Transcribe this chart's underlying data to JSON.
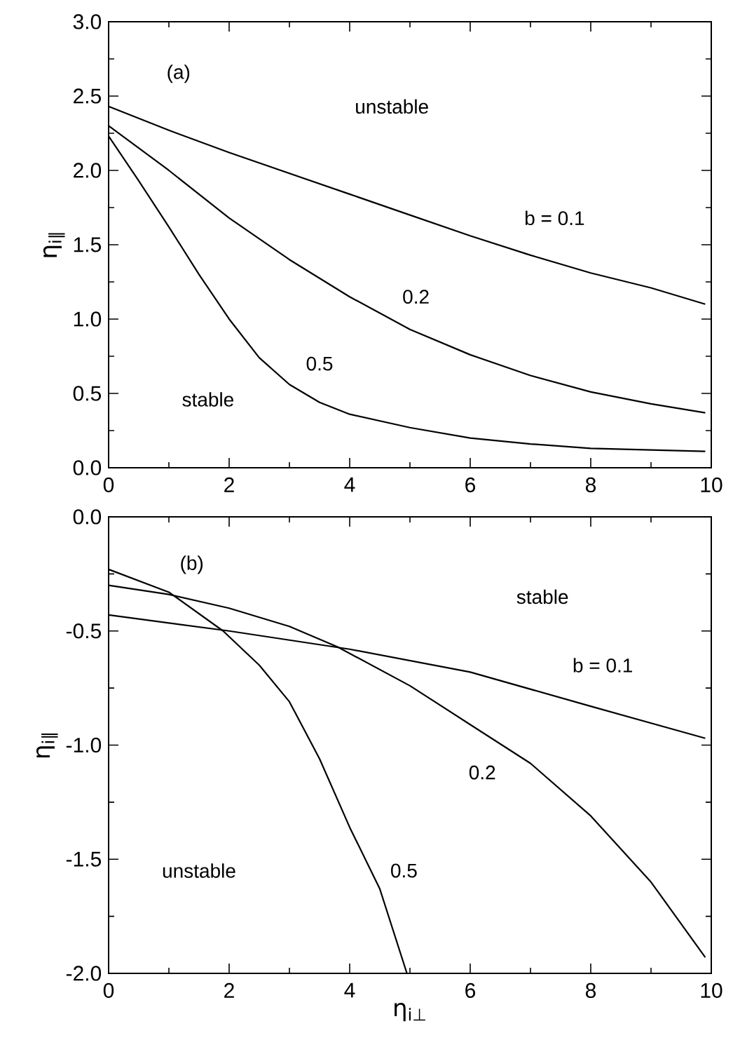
{
  "chart_data": [
    {
      "type": "line",
      "ylabel": "η$_{i∥}$",
      "xlim": [
        0,
        10
      ],
      "ylim": [
        0,
        3
      ],
      "xticks": [
        0,
        2,
        4,
        6,
        8,
        10
      ],
      "yticks": [
        {
          "value": 0,
          "label": "0.0"
        },
        {
          "value": 0.5,
          "label": "0.5"
        },
        {
          "value": 1,
          "label": "1.0"
        },
        {
          "value": 1.5,
          "label": "1.5"
        },
        {
          "value": 2,
          "label": "2.0"
        },
        {
          "value": 2.5,
          "label": "2.5"
        },
        {
          "value": 3,
          "label": "3.0"
        }
      ],
      "annotations": [
        "(a)",
        "unstable",
        "stable"
      ],
      "series": [
        {
          "name": "b = 0.1",
          "color": "#000000",
          "x": [
            0,
            1,
            2,
            3,
            4,
            5,
            6,
            7,
            8,
            9,
            9.9
          ],
          "values": [
            2.43,
            2.27,
            2.12,
            1.98,
            1.84,
            1.7,
            1.56,
            1.43,
            1.31,
            1.21,
            1.1
          ]
        },
        {
          "name": "0.2",
          "color": "#000000",
          "x": [
            0,
            1,
            2,
            3,
            4,
            5,
            6,
            7,
            8,
            9,
            9.9
          ],
          "values": [
            2.3,
            2.0,
            1.68,
            1.4,
            1.15,
            0.93,
            0.76,
            0.62,
            0.51,
            0.43,
            0.37
          ]
        },
        {
          "name": "0.5",
          "color": "#000000",
          "x": [
            0,
            0.5,
            1,
            1.5,
            2,
            2.5,
            3,
            3.5,
            4,
            5,
            6,
            7,
            8,
            9,
            9.9
          ],
          "values": [
            2.23,
            1.93,
            1.62,
            1.3,
            1.0,
            0.74,
            0.56,
            0.44,
            0.36,
            0.27,
            0.2,
            0.16,
            0.13,
            0.12,
            0.11
          ]
        }
      ]
    },
    {
      "type": "line",
      "xlabel": "η$_{i⊥}$",
      "ylabel": "η$_{i∥}$",
      "xlim": [
        0,
        10
      ],
      "ylim": [
        -2,
        0
      ],
      "xticks": [
        0,
        2,
        4,
        6,
        8,
        10
      ],
      "yticks": [
        {
          "value": -2,
          "label": "-2.0"
        },
        {
          "value": -1.5,
          "label": "-1.5"
        },
        {
          "value": -1,
          "label": "-1.0"
        },
        {
          "value": -0.5,
          "label": "-0.5"
        },
        {
          "value": 0,
          "label": "0.0"
        }
      ],
      "annotations": [
        "(b)",
        "stable",
        "unstable"
      ],
      "series": [
        {
          "name": "b = 0.1",
          "color": "#000000",
          "x": [
            0,
            2,
            4,
            6,
            8,
            9.9
          ],
          "values": [
            -0.43,
            -0.5,
            -0.58,
            -0.68,
            -0.83,
            -0.97
          ]
        },
        {
          "name": "0.2",
          "color": "#000000",
          "x": [
            0,
            1,
            2,
            3,
            3.8,
            5,
            6,
            7,
            8,
            9,
            9.9
          ],
          "values": [
            -0.3,
            -0.34,
            -0.4,
            -0.48,
            -0.57,
            -0.74,
            -0.91,
            -1.08,
            -1.31,
            -1.6,
            -1.93
          ]
        },
        {
          "name": "0.5",
          "color": "#000000",
          "x": [
            0,
            1,
            1.9,
            2.5,
            3,
            3.5,
            4,
            4.5,
            4.95
          ],
          "values": [
            -0.23,
            -0.33,
            -0.5,
            -0.65,
            -0.81,
            -1.06,
            -1.36,
            -1.63,
            -2.0
          ]
        }
      ]
    }
  ]
}
